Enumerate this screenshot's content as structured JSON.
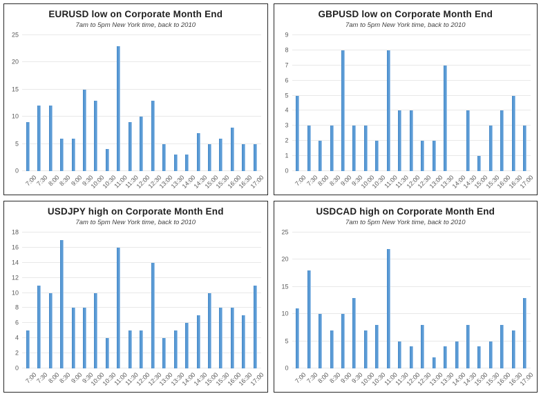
{
  "styles": {
    "bar_color": "#5b9bd5",
    "bar_edge_dark": "#4387c7",
    "bar_edge_light": "#9cc3e9",
    "gridline_color": "#e8e8e8",
    "axis_label_color": "#595959",
    "title_color": "#1f1f1f",
    "subtitle_color": "#404040",
    "panel_border_color": "#262626",
    "background": "#ffffff"
  },
  "chart_data": [
    {
      "id": "eurusd",
      "type": "bar",
      "title": "EURUSD low on Corporate Month End",
      "subtitle": "7am to 5pm New York time, back to 2010",
      "categories": [
        "7:00",
        "7:30",
        "8:00",
        "8:30",
        "9:00",
        "9:30",
        "10:00",
        "10:30",
        "11:00",
        "11:30",
        "12:00",
        "12:30",
        "13:00",
        "13:30",
        "14:00",
        "14:30",
        "15:00",
        "15:30",
        "16:00",
        "16:30",
        "17:00"
      ],
      "values": [
        9,
        12,
        12,
        6,
        6,
        15,
        13,
        4,
        23,
        9,
        10,
        13,
        5,
        3,
        3,
        7,
        5,
        6,
        8,
        5,
        5
      ],
      "xlabel": "",
      "ylabel": "",
      "ylim": [
        0,
        25
      ],
      "ytick_step": 5,
      "grid": true,
      "legend": "none"
    },
    {
      "id": "gbpusd",
      "type": "bar",
      "title": "GBPUSD low on Corporate Month End",
      "subtitle": "7am to 5pm New York time, back to 2010",
      "categories": [
        "7:00",
        "7:30",
        "8:00",
        "8:30",
        "9:00",
        "9:30",
        "10:00",
        "10:30",
        "11:00",
        "11:30",
        "12:00",
        "12:30",
        "13:00",
        "13:30",
        "14:00",
        "14:30",
        "15:00",
        "15:30",
        "16:00",
        "16:30",
        "17:00"
      ],
      "values": [
        5,
        3,
        2,
        3,
        8,
        3,
        3,
        2,
        8,
        4,
        4,
        2,
        2,
        7,
        0,
        4,
        1,
        3,
        4,
        5,
        3
      ],
      "xlabel": "",
      "ylabel": "",
      "ylim": [
        0,
        9
      ],
      "ytick_step": 1,
      "grid": true,
      "legend": "none"
    },
    {
      "id": "usdjpy",
      "type": "bar",
      "title": "USDJPY high on Corporate Month End",
      "subtitle": "7am to 5pm New York time, back to 2010",
      "categories": [
        "7:00",
        "7:30",
        "8:00",
        "8:30",
        "9:00",
        "9:30",
        "10:00",
        "10:30",
        "11:00",
        "11:30",
        "12:00",
        "12:30",
        "13:00",
        "13:30",
        "14:00",
        "14:30",
        "15:00",
        "15:30",
        "16:00",
        "16:30",
        "17:00"
      ],
      "values": [
        5,
        11,
        10,
        17,
        8,
        8,
        10,
        4,
        16,
        5,
        5,
        14,
        4,
        5,
        6,
        7,
        10,
        8,
        8,
        7,
        11
      ],
      "xlabel": "",
      "ylabel": "",
      "ylim": [
        0,
        18
      ],
      "ytick_step": 2,
      "grid": true,
      "legend": "none"
    },
    {
      "id": "usdcad",
      "type": "bar",
      "title": "USDCAD high on Corporate Month End",
      "subtitle": "7am to 5pm New York time, back to 2010",
      "categories": [
        "7:00",
        "7:30",
        "8:00",
        "8:30",
        "9:00",
        "9:30",
        "10:00",
        "10:30",
        "11:00",
        "11:30",
        "12:00",
        "12:30",
        "13:00",
        "13:30",
        "14:00",
        "14:30",
        "15:00",
        "15:30",
        "16:00",
        "16:30",
        "17:00"
      ],
      "values": [
        11,
        18,
        10,
        7,
        10,
        13,
        7,
        8,
        22,
        5,
        4,
        8,
        2,
        4,
        5,
        8,
        4,
        5,
        8,
        7,
        13
      ],
      "xlabel": "",
      "ylabel": "",
      "ylim": [
        0,
        25
      ],
      "ytick_step": 5,
      "grid": true,
      "legend": "none"
    }
  ]
}
